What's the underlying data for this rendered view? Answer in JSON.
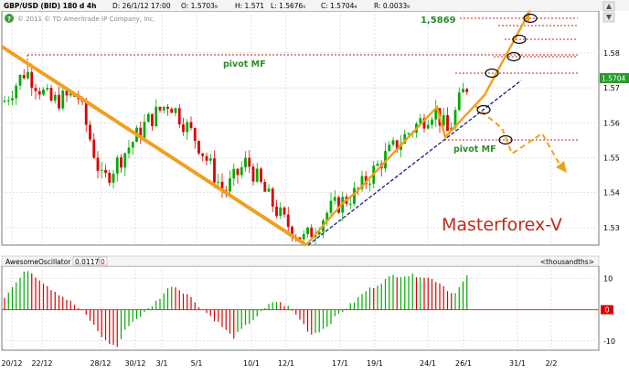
{
  "header": {
    "symbol": "GBP/USD (BID) 180 d 4h",
    "date": "D: 26/1/12 17:00",
    "open": "O: 1.5703₉",
    "high": "H: 1.571",
    "low": "L: 1.5676₁",
    "close": "C: 1.5704₉",
    "range": "R: 0.0033₉",
    "copyright": "© 2011 © TD Ameritrade IP Company, Inc."
  },
  "price_badge": "1.5704",
  "oscillator": {
    "name": "AwesomeOscillator",
    "value": "0.0117",
    "extra": "0",
    "unit": "<thousandths>"
  },
  "annotations": {
    "target": "1,5869",
    "pivot_top": "pivot MF",
    "pivot_bottom": "pivot MF",
    "watermark": "Masterforex-V"
  },
  "colors": {
    "up": "#00aa00",
    "down": "#dd0000",
    "trend": "#f0a020",
    "support": "#1c1c8c",
    "pivot_line": "#cc2020",
    "label_green": "#2d8a2d",
    "watermark": "#c0281c"
  },
  "chart_data": [
    {
      "type": "candlestick",
      "title": "GBP/USD (BID) 180 d 4h",
      "x_tick_labels": [
        "20/12",
        "22/12",
        "28/12",
        "30/12",
        "3/1",
        "5/1",
        "10/1",
        "12/1",
        "17/1",
        "19/1",
        "24/1",
        "26/1",
        "31/1",
        "2/2"
      ],
      "y_tick_labels": [
        "1.53",
        "1.54",
        "1.55",
        "1.56",
        "1.57",
        "1.58"
      ],
      "ylim": [
        1.525,
        1.592
      ],
      "last_price": 1.5704,
      "target_level": 1.5869,
      "pivot_high": 1.5775,
      "pivot_low": 1.5535,
      "swing_high": 1.5775,
      "swing_low": 1.5255,
      "grid": true
    },
    {
      "type": "bar",
      "title": "AwesomeOscillator",
      "y_tick_labels": [
        "10",
        "0",
        "-10"
      ],
      "ylim": [
        -13,
        14
      ],
      "current_value": 0.0117,
      "zero_line": true
    }
  ]
}
